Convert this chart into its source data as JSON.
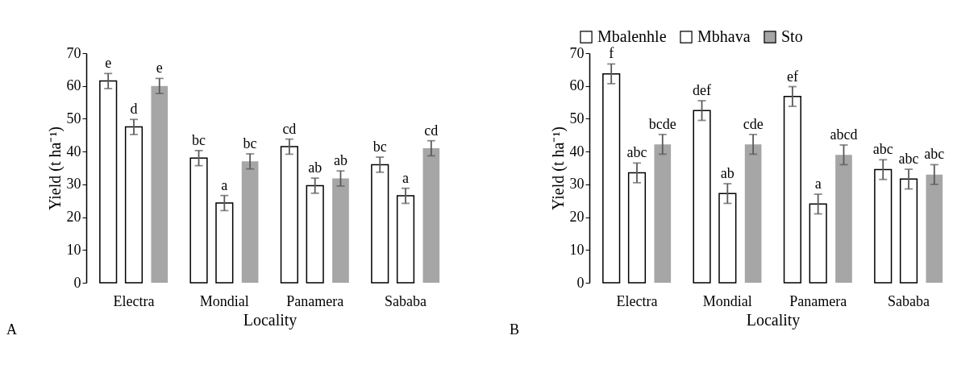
{
  "chart_data": [
    {
      "type": "bar",
      "xlabel": "Locality",
      "ylabel": "Yield (t ha⁻¹)",
      "categories": [
        "Electra",
        "Mondial",
        "Panamera",
        "Sababa"
      ],
      "ylim": [
        0,
        70
      ],
      "yticks": [
        0,
        10,
        20,
        30,
        40,
        50,
        60,
        70
      ],
      "grid": false,
      "legend": "top right",
      "annotations": [
        "A"
      ],
      "series": [
        {
          "name": "Mbalenhle",
          "color": "#ffffff",
          "values": [
            61.5,
            38,
            41.5,
            36
          ],
          "errors": [
            2.3,
            2.3,
            2.3,
            2.3
          ],
          "value_labels": [
            "e",
            "bc",
            "cd",
            "bc"
          ]
        },
        {
          "name": "Mbhava",
          "color": "#ffffff",
          "values": [
            47.5,
            24.3,
            29.6,
            26.5
          ],
          "errors": [
            2.3,
            2.3,
            2.3,
            2.3
          ],
          "value_labels": [
            "d",
            "a",
            "ab",
            "a"
          ]
        },
        {
          "name": "Sto",
          "color": "#a6a6a6",
          "values": [
            60,
            37,
            31.8,
            41
          ],
          "errors": [
            2.3,
            2.3,
            2.3,
            2.3
          ],
          "value_labels": [
            "e",
            "bc",
            "ab",
            "cd"
          ]
        }
      ]
    },
    {
      "type": "bar",
      "xlabel": "Locality",
      "ylabel": "Yield (t ha⁻¹)",
      "categories": [
        "Electra",
        "Mondial",
        "Panamera",
        "Sababa"
      ],
      "ylim": [
        0,
        70
      ],
      "yticks": [
        0,
        10,
        20,
        30,
        40,
        50,
        60,
        70
      ],
      "grid": false,
      "annotations": [
        "B"
      ],
      "series": [
        {
          "color": "#ffffff",
          "values": [
            63.7,
            52.5,
            56.8,
            34.5
          ],
          "errors": [
            3,
            3,
            3,
            3
          ],
          "value_labels": [
            "f",
            "def",
            "ef",
            "abc"
          ]
        },
        {
          "color": "#ffffff",
          "values": [
            33.5,
            27.2,
            24,
            31.6
          ],
          "errors": [
            3,
            3,
            3,
            3
          ],
          "value_labels": [
            "abc",
            "ab",
            "a",
            "abc"
          ]
        },
        {
          "color": "#a6a6a6",
          "values": [
            42.2,
            42.2,
            39,
            33
          ],
          "errors": [
            3,
            3,
            3,
            3
          ],
          "value_labels": [
            "bcde",
            "cde",
            "abcd",
            "abc"
          ]
        }
      ]
    }
  ]
}
